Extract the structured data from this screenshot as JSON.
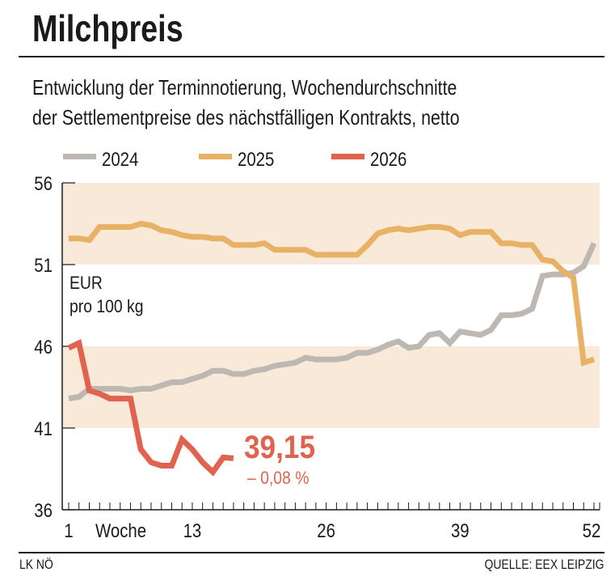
{
  "title": "Milchpreis",
  "subtitle_lines": [
    "Entwicklung der Terminnotierung, Wochendurchschnitte",
    "der Settlementpreise des nächstfälligen Kontrakts, netto"
  ],
  "footer": {
    "left": "LK NÖ",
    "right": "QUELLE: EEX LEIPZIG"
  },
  "chart_data": {
    "type": "line",
    "ylabel_lines": [
      "EUR",
      "pro 100 kg"
    ],
    "xlabel": "Woche",
    "ylim": [
      36,
      56
    ],
    "xlim": [
      1,
      52
    ],
    "yticks": [
      36,
      41,
      46,
      51,
      56
    ],
    "xticks": [
      1,
      13,
      26,
      39,
      52
    ],
    "shaded_bands": [
      [
        41,
        46
      ],
      [
        51,
        56
      ]
    ],
    "grid": false,
    "legend_position": "top-left",
    "colors": {
      "2024": "#bdb8b4",
      "2025": "#e8b266",
      "2026": "#e0634f",
      "band": "#f8e9d8"
    },
    "series": [
      {
        "name": "2024",
        "x_start": 1,
        "values": [
          42.8,
          42.9,
          43.4,
          43.4,
          43.4,
          43.4,
          43.3,
          43.4,
          43.4,
          43.6,
          43.8,
          43.8,
          44.0,
          44.2,
          44.5,
          44.5,
          44.3,
          44.3,
          44.5,
          44.6,
          44.8,
          44.9,
          45.0,
          45.3,
          45.2,
          45.2,
          45.2,
          45.3,
          45.6,
          45.6,
          45.8,
          46.1,
          46.3,
          45.9,
          46.0,
          46.7,
          46.8,
          46.2,
          46.9,
          46.8,
          46.7,
          47.0,
          47.9,
          47.9,
          48.0,
          48.3,
          50.3,
          50.4,
          50.4,
          50.5,
          50.9,
          52.3
        ]
      },
      {
        "name": "2025",
        "x_start": 1,
        "values": [
          52.6,
          52.6,
          52.5,
          53.3,
          53.3,
          53.3,
          53.3,
          53.5,
          53.4,
          53.1,
          53.0,
          52.8,
          52.7,
          52.7,
          52.6,
          52.6,
          52.2,
          52.2,
          52.2,
          52.3,
          51.9,
          51.9,
          51.9,
          51.9,
          51.6,
          51.6,
          51.6,
          51.6,
          51.6,
          52.2,
          52.9,
          53.1,
          53.2,
          53.1,
          53.2,
          53.3,
          53.3,
          53.2,
          52.8,
          53.0,
          53.0,
          53.0,
          52.3,
          52.3,
          52.2,
          52.2,
          51.3,
          51.2,
          50.6,
          50.2,
          45.0,
          45.2
        ]
      },
      {
        "name": "2026",
        "x_start": 1,
        "values": [
          45.9,
          46.2,
          43.3,
          43.1,
          42.8,
          42.8,
          42.8,
          39.7,
          38.9,
          38.7,
          38.7,
          40.3,
          39.7,
          38.9,
          38.3,
          39.2,
          39.15
        ]
      }
    ],
    "annotation": {
      "value": "39,15",
      "change": "– 0,08 %"
    }
  }
}
